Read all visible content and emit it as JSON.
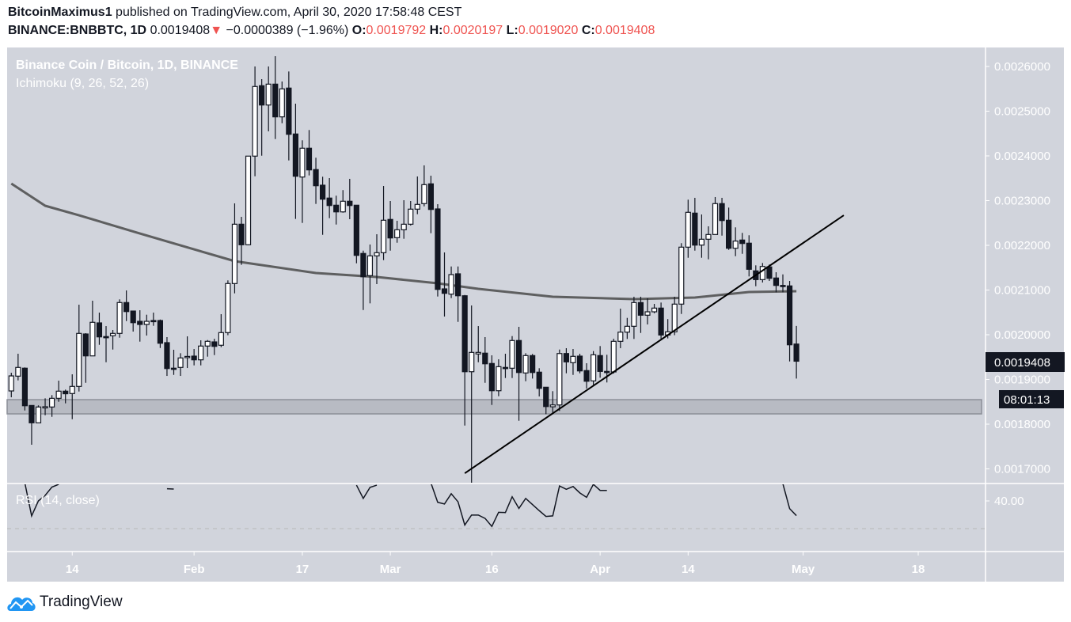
{
  "header": {
    "author": "BitcoinMaximus1",
    "published": "published on TradingView.com, April 30, 2020 17:58:48 CEST",
    "symbol": "BINANCE:BNBBTC, 1D",
    "last": "0.0019408",
    "change": "−0.0000389 (−1.96%)",
    "o_label": "O:",
    "o": "0.0019792",
    "h_label": "H:",
    "h": "0.0020197",
    "l_label": "L:",
    "l": "0.0019020",
    "c_label": "C:",
    "c": "0.0019408",
    "down_arrow": "▼"
  },
  "legend": {
    "title": "Binance Coin / Bitcoin, 1D, BINANCE",
    "indicator": "Ichimoku (9, 26, 52, 26)",
    "rsi": "RSI (14, close)"
  },
  "brand": {
    "name": "TradingView",
    "logo_color": "#2196f3",
    "icon": "cloud-chart-logo-icon"
  },
  "colors": {
    "background": "#d1d4dc",
    "bear": "#131722",
    "bull": "#ffffff",
    "axis_text": "#ffffff",
    "ma_line": "#4a4a4a",
    "trend_line": "#000000"
  },
  "chart_data": {
    "type": "candlestick",
    "ylim": [
      0.00167,
      0.00262
    ],
    "y_ticks": [
      "0.0026000",
      "0.0025000",
      "0.0024000",
      "0.0023000",
      "0.0022000",
      "0.0021000",
      "0.0020000",
      "0.0019000",
      "0.0018000",
      "0.0017000"
    ],
    "x_ticks": [
      {
        "date": "2020-01-14",
        "label": "14"
      },
      {
        "date": "2020-02-01",
        "label": "Feb"
      },
      {
        "date": "2020-02-17",
        "label": "17"
      },
      {
        "date": "2020-03-01",
        "label": "Mar"
      },
      {
        "date": "2020-03-16",
        "label": "16"
      },
      {
        "date": "2020-04-01",
        "label": "Apr"
      },
      {
        "date": "2020-04-14",
        "label": "14"
      },
      {
        "date": "2020-05-01",
        "label": "May"
      },
      {
        "date": "2020-05-18",
        "label": "18"
      }
    ],
    "last_price_label": "0.0019408",
    "countdown_label": "08:01:13",
    "grid": false,
    "candles_columns": [
      "date",
      "open",
      "high",
      "low",
      "close"
    ],
    "candles": [
      [
        "2020-01-05",
        0.0018743,
        0.001915,
        0.0018601,
        0.0019079
      ],
      [
        "2020-01-06",
        0.0019074,
        0.0019575,
        0.0018979,
        0.0019269
      ],
      [
        "2020-01-07",
        0.0019252,
        0.0019269,
        0.0018306,
        0.0018412
      ],
      [
        "2020-01-08",
        0.0018418,
        0.0018418,
        0.001754,
        0.001803
      ],
      [
        "2020-01-09",
        0.001803,
        0.001842,
        0.001803,
        0.0018384
      ],
      [
        "2020-01-10",
        0.0018384,
        0.0018578,
        0.00182,
        0.001839
      ],
      [
        "2020-01-11",
        0.0018384,
        0.0018649,
        0.0018164,
        0.0018578
      ],
      [
        "2020-01-12",
        0.0018578,
        0.0018973,
        0.00185,
        0.0018738
      ],
      [
        "2020-01-13",
        0.0018738,
        0.0018773,
        0.0018466,
        0.001868
      ],
      [
        "2020-01-14",
        0.0018685,
        0.0019115,
        0.0018111,
        0.0018844
      ],
      [
        "2020-01-15",
        0.0018844,
        0.0020672,
        0.001873,
        0.002003
      ],
      [
        "2020-01-16",
        0.0020017,
        0.0020035,
        0.0018925,
        0.0019527
      ],
      [
        "2020-01-17",
        0.0019527,
        0.0020761,
        0.0019527,
        0.0020278
      ],
      [
        "2020-01-18",
        0.0020265,
        0.0020495,
        0.0019775,
        0.0019952
      ],
      [
        "2020-01-19",
        0.0019959,
        0.0020194,
        0.0019385,
        0.0019934
      ],
      [
        "2020-01-20",
        0.0019977,
        0.0020106,
        0.0019669,
        0.002003
      ],
      [
        "2020-01-21",
        0.002003,
        0.0020791,
        0.0019934,
        0.002072
      ],
      [
        "2020-01-22",
        0.002072,
        0.0020991,
        0.0020306,
        0.0020518
      ],
      [
        "2020-01-23",
        0.002053,
        0.002053,
        0.0020071,
        0.002027
      ],
      [
        "2020-01-24",
        0.00203,
        0.0020548,
        0.0019846,
        0.002023
      ],
      [
        "2020-01-25",
        0.002023,
        0.0020448,
        0.0019982,
        0.00203
      ],
      [
        "2020-01-26",
        0.0020318,
        0.0020495,
        0.00202,
        0.002031
      ],
      [
        "2020-01-27",
        0.0020318,
        0.002034,
        0.0019704,
        0.001981
      ],
      [
        "2020-01-28",
        0.0019823,
        0.0019947,
        0.0019079,
        0.0019244
      ],
      [
        "2020-01-29",
        0.0019252,
        0.0019664,
        0.0019102,
        0.0019226
      ],
      [
        "2020-01-30",
        0.0019269,
        0.0019587,
        0.0019079,
        0.0019481
      ],
      [
        "2020-01-31",
        0.001951,
        0.0019964,
        0.0019256,
        0.0019515
      ],
      [
        "2020-02-01",
        0.0019522,
        0.0019681,
        0.0019315,
        0.0019439
      ],
      [
        "2020-02-02",
        0.0019439,
        0.0019876,
        0.0019315,
        0.0019747
      ],
      [
        "2020-02-03",
        0.0019747,
        0.0019882,
        0.001951,
        0.0019853
      ],
      [
        "2020-02-04",
        0.001984,
        0.0019911,
        0.0019545,
        0.001974
      ],
      [
        "2020-02-05",
        0.0019765,
        0.002046,
        0.0019722,
        0.0020048
      ],
      [
        "2020-02-06",
        0.0020048,
        0.0021216,
        0.001999,
        0.0021145
      ],
      [
        "2020-02-07",
        0.0021145,
        0.0022938,
        0.0020926,
        0.0022472
      ],
      [
        "2020-02-08",
        0.0022472,
        0.0022637,
        0.0021563,
        0.0022012
      ],
      [
        "2020-02-09",
        0.0022012,
        0.0023995,
        0.0022,
        0.0023995
      ],
      [
        "2020-02-10",
        0.0023995,
        0.0026,
        0.0023545,
        0.0025552
      ],
      [
        "2020-02-11",
        0.002557,
        0.0025717,
        0.0024005,
        0.0025138
      ],
      [
        "2020-02-12",
        0.0025138,
        0.0026,
        0.0024549,
        0.0025605
      ],
      [
        "2020-02-13",
        0.0025605,
        0.002623,
        0.0024377,
        0.0024873
      ],
      [
        "2020-02-14",
        0.0024873,
        0.0025664,
        0.0024731,
        0.0025499
      ],
      [
        "2020-02-15",
        0.0025517,
        0.0025888,
        0.0023899,
        0.0024483
      ],
      [
        "2020-02-16",
        0.002449,
        0.0025168,
        0.002259,
        0.0023545
      ],
      [
        "2020-02-17",
        0.0023527,
        0.0024349,
        0.0022501,
        0.0024172
      ],
      [
        "2020-02-18",
        0.0024172,
        0.0024579,
        0.0023563,
        0.0023687
      ],
      [
        "2020-02-19",
        0.0023694,
        0.0023959,
        0.0022926,
        0.0023333
      ],
      [
        "2020-02-20",
        0.0023345,
        0.0023534,
        0.0022235,
        0.0023032
      ],
      [
        "2020-02-21",
        0.0023057,
        0.0023504,
        0.0022607,
        0.002289
      ],
      [
        "2020-02-22",
        0.0022897,
        0.002311,
        0.0022465,
        0.0022748
      ],
      [
        "2020-02-23",
        0.0022748,
        0.0023235,
        0.002273,
        0.0022986
      ],
      [
        "2020-02-24",
        0.0022986,
        0.0023487,
        0.0022584,
        0.002289
      ],
      [
        "2020-02-25",
        0.0022897,
        0.00229,
        0.0021598,
        0.0021775
      ],
      [
        "2020-02-26",
        0.0021818,
        0.0021881,
        0.0020553,
        0.0021297
      ],
      [
        "2020-02-27",
        0.0021322,
        0.0022018,
        0.0020702,
        0.0021764
      ],
      [
        "2020-02-28",
        0.0021764,
        0.0022248,
        0.0021133,
        0.0021835
      ],
      [
        "2020-02-29",
        0.0021835,
        0.0023327,
        0.0021669,
        0.0022561
      ],
      [
        "2020-03-01",
        0.0022579,
        0.0022991,
        0.0021881,
        0.0022165
      ],
      [
        "2020-03-02",
        0.0022171,
        0.0022549,
        0.0022058,
        0.0022348
      ],
      [
        "2020-03-03",
        0.0022348,
        0.0023009,
        0.0022147,
        0.0022472
      ],
      [
        "2020-03-04",
        0.0022472,
        0.0022991,
        0.0022442,
        0.0022809
      ],
      [
        "2020-03-05",
        0.0022809,
        0.002354,
        0.0022696,
        0.0022915
      ],
      [
        "2020-03-06",
        0.0022933,
        0.0023788,
        0.0022872,
        0.0023357
      ],
      [
        "2020-03-07",
        0.0023375,
        0.0023557,
        0.0022271,
        0.0022802
      ],
      [
        "2020-03-08",
        0.0022814,
        0.002292,
        0.0020855,
        0.0021014
      ],
      [
        "2020-03-09",
        0.0021026,
        0.0021841,
        0.0020407,
        0.0020926
      ],
      [
        "2020-03-10",
        0.0020908,
        0.0021527,
        0.0020819,
        0.0021345
      ],
      [
        "2020-03-11",
        0.0021363,
        0.0021527,
        0.0020288,
        0.0020872
      ],
      [
        "2020-03-12",
        0.0020872,
        0.002089,
        0.001797,
        0.0019173
      ],
      [
        "2020-03-13",
        0.0019173,
        0.0020654,
        0.001669,
        0.0019605
      ],
      [
        "2020-03-14",
        0.001957,
        0.0020194,
        0.0019385,
        0.0019605
      ],
      [
        "2020-03-15",
        0.0019588,
        0.0019947,
        0.0018925,
        0.001935
      ],
      [
        "2020-03-16",
        0.0019357,
        0.001954,
        0.001843,
        0.0018748
      ],
      [
        "2020-03-17",
        0.0018748,
        0.0019451,
        0.0018625,
        0.0019286
      ],
      [
        "2020-03-18",
        0.0019269,
        0.0019575,
        0.0019032,
        0.0019245
      ],
      [
        "2020-03-19",
        0.0019251,
        0.001997,
        0.0019032,
        0.0019871
      ],
      [
        "2020-03-20",
        0.0019871,
        0.0020177,
        0.0018076,
        0.0019155
      ],
      [
        "2020-03-21",
        0.0019145,
        0.0019587,
        0.001896,
        0.0019534
      ],
      [
        "2020-03-22",
        0.0019534,
        0.001957,
        0.001902,
        0.0019155
      ],
      [
        "2020-03-23",
        0.0019163,
        0.0019251,
        0.001862,
        0.0018801
      ],
      [
        "2020-03-24",
        0.0018826,
        0.001883,
        0.0018224,
        0.0018394
      ],
      [
        "2020-03-25",
        0.0018389,
        0.0018738,
        0.0018224,
        0.001843
      ],
      [
        "2020-03-26",
        0.001843,
        0.0019669,
        0.0018295,
        0.001958
      ],
      [
        "2020-03-27",
        0.001958,
        0.0019699,
        0.0019138,
        0.0019393
      ],
      [
        "2020-03-28",
        0.0019375,
        0.0019681,
        0.0019102,
        0.0019517
      ],
      [
        "2020-03-29",
        0.0019522,
        0.0019575,
        0.0019138,
        0.0019191
      ],
      [
        "2020-03-30",
        0.0019198,
        0.0019363,
        0.0018796,
        0.001896
      ],
      [
        "2020-03-31",
        0.0018968,
        0.0019634,
        0.001888,
        0.0019552
      ],
      [
        "2020-04-01",
        0.0019534,
        0.0019747,
        0.0019039,
        0.001918
      ],
      [
        "2020-04-02",
        0.001918,
        0.0019552,
        0.0018933,
        0.0019168
      ],
      [
        "2020-04-03",
        0.0019168,
        0.0019911,
        0.0019132,
        0.0019853
      ],
      [
        "2020-04-04",
        0.0019853,
        0.0020584,
        0.00197,
        0.0020058
      ],
      [
        "2020-04-05",
        0.0020058,
        0.0020377,
        0.0019906,
        0.0020189
      ],
      [
        "2020-04-06",
        0.0020189,
        0.002085,
        0.0019906,
        0.002072
      ],
      [
        "2020-04-07",
        0.002072,
        0.002085,
        0.002004,
        0.0020437
      ],
      [
        "2020-04-08",
        0.0020437,
        0.0020814,
        0.002023,
        0.0020513
      ],
      [
        "2020-04-09",
        0.0020513,
        0.002069,
        0.002048,
        0.0020596
      ],
      [
        "2020-04-10",
        0.0020596,
        0.002072,
        0.0019906,
        0.0019994
      ],
      [
        "2020-04-11",
        0.0019994,
        0.002035,
        0.0019918,
        0.0020065
      ],
      [
        "2020-04-12",
        0.0020065,
        0.002085,
        0.001999,
        0.0020685
      ],
      [
        "2020-04-13",
        0.0020685,
        0.0022048,
        0.0020465,
        0.0021959
      ],
      [
        "2020-04-14",
        0.0021959,
        0.0023021,
        0.0021722,
        0.0022738
      ],
      [
        "2020-04-15",
        0.002272,
        0.0023062,
        0.0021881,
        0.0022005
      ],
      [
        "2020-04-16",
        0.0022005,
        0.002269,
        0.0021722,
        0.0022136
      ],
      [
        "2020-04-17",
        0.0022136,
        0.0022425,
        0.0021687,
        0.0022242
      ],
      [
        "2020-04-18",
        0.0022242,
        0.002308,
        0.0022242,
        0.0022933
      ],
      [
        "2020-04-19",
        0.0022933,
        0.0023062,
        0.0022217,
        0.0022554
      ],
      [
        "2020-04-20",
        0.0022561,
        0.0022844,
        0.0021899,
        0.0021934
      ],
      [
        "2020-04-21",
        0.0021934,
        0.0022402,
        0.0021757,
        0.0022095
      ],
      [
        "2020-04-22",
        0.0022118,
        0.0022278,
        0.002181,
        0.0022041
      ],
      [
        "2020-04-23",
        0.0022048,
        0.0022225,
        0.0021304,
        0.0021464
      ],
      [
        "2020-04-24",
        0.0021428,
        0.0021552,
        0.0021085,
        0.0021233
      ],
      [
        "2020-04-25",
        0.0021233,
        0.0021605,
        0.0021168,
        0.0021527
      ],
      [
        "2020-04-26",
        0.0021517,
        0.002157,
        0.0021203,
        0.0021262
      ],
      [
        "2020-04-27",
        0.0021269,
        0.0021398,
        0.002095,
        0.0021103
      ],
      [
        "2020-04-28",
        0.0021103,
        0.002135,
        0.002095,
        0.002109
      ],
      [
        "2020-04-29",
        0.0021092,
        0.0021203,
        0.0019403,
        0.0019775
      ],
      [
        "2020-04-30",
        0.0019792,
        0.0020197,
        0.001902,
        0.0019408
      ]
    ],
    "moving_average": [
      [
        "2020-01-05",
        0.002338
      ],
      [
        "2020-01-10",
        0.0022885
      ],
      [
        "2020-01-15",
        0.0022672
      ],
      [
        "2020-01-24",
        0.0022265
      ],
      [
        "2020-02-01",
        0.002191
      ],
      [
        "2020-02-07",
        0.0021646
      ],
      [
        "2020-02-19",
        0.002138
      ],
      [
        "2020-02-28",
        0.0021292
      ],
      [
        "2020-03-08",
        0.002115
      ],
      [
        "2020-03-14",
        0.0021026
      ],
      [
        "2020-03-25",
        0.002085
      ],
      [
        "2020-04-06",
        0.0020796
      ],
      [
        "2020-04-15",
        0.0020832
      ],
      [
        "2020-04-23",
        0.0020955
      ],
      [
        "2020-04-30",
        0.0020973
      ]
    ],
    "trend_line": [
      [
        "2020-03-12",
        0.0016902
      ],
      [
        "2020-05-07",
        0.0022672
      ]
    ],
    "support_zone": [
      0.001823,
      0.0018548
    ],
    "rsi": {
      "label": "RSI (14, close)",
      "y_tick": "40.00",
      "tick_value": 40,
      "dashed_level": 30,
      "visible_range": [
        21.7,
        46.3
      ],
      "segments": [
        [
          [
            "2020-01-07",
            46.5
          ],
          [
            "2020-01-08",
            34.6
          ],
          [
            "2020-01-09",
            40.0
          ],
          [
            "2020-01-10",
            42.0
          ],
          [
            "2020-01-11",
            45.0
          ],
          [
            "2020-01-12",
            46.0
          ]
        ],
        [
          [
            "2020-01-28",
            44.4
          ],
          [
            "2020-01-29",
            44.3
          ]
        ],
        [
          [
            "2020-02-25",
            45.7
          ],
          [
            "2020-02-26",
            40.9
          ],
          [
            "2020-02-27",
            44.9
          ],
          [
            "2020-02-28",
            45.7
          ]
        ],
        [
          [
            "2020-03-07",
            46.5
          ],
          [
            "2020-03-08",
            39.5
          ],
          [
            "2020-03-09",
            38.9
          ],
          [
            "2020-03-10",
            42.6
          ],
          [
            "2020-03-11",
            39.7
          ],
          [
            "2020-03-12",
            31.3
          ],
          [
            "2020-03-13",
            34.9
          ],
          [
            "2020-03-14",
            34.9
          ],
          [
            "2020-03-15",
            33.7
          ],
          [
            "2020-03-16",
            30.8
          ],
          [
            "2020-03-17",
            35.9
          ],
          [
            "2020-03-18",
            35.8
          ],
          [
            "2020-03-19",
            41.5
          ],
          [
            "2020-03-20",
            37.3
          ],
          [
            "2020-03-21",
            40.9
          ],
          [
            "2020-03-22",
            38.7
          ],
          [
            "2020-03-23",
            36.5
          ],
          [
            "2020-03-24",
            34.4
          ],
          [
            "2020-03-25",
            34.6
          ],
          [
            "2020-03-26",
            45.4
          ],
          [
            "2020-03-27",
            44.2
          ],
          [
            "2020-03-28",
            45.2
          ],
          [
            "2020-03-29",
            42.9
          ],
          [
            "2020-03-30",
            41.3
          ],
          [
            "2020-03-31",
            46.0
          ],
          [
            "2020-04-01",
            43.8
          ],
          [
            "2020-04-02",
            43.8
          ]
        ],
        [
          [
            "2020-04-28",
            46.2
          ],
          [
            "2020-04-29",
            37.2
          ],
          [
            "2020-04-30",
            34.7
          ]
        ]
      ]
    }
  }
}
